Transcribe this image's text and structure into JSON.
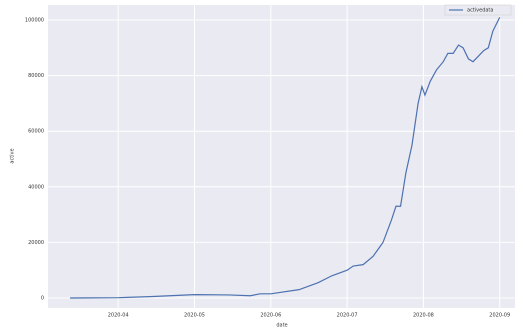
{
  "chart_data": {
    "type": "line",
    "x_label": "date",
    "y_label": "active",
    "x": [
      3.37,
      4.0,
      4.42,
      5.0,
      5.45,
      5.73,
      5.86,
      6.0,
      6.37,
      6.62,
      6.8,
      7.0,
      7.08,
      7.21,
      7.34,
      7.47,
      7.58,
      7.64,
      7.7,
      7.77,
      7.85,
      7.93,
      7.98,
      8.02,
      8.09,
      8.17,
      8.26,
      8.32,
      8.39,
      8.46,
      8.52,
      8.59,
      8.65,
      8.72,
      8.79,
      8.85,
      8.91,
      9.0
    ],
    "series": [
      {
        "name": "activedata",
        "color": "#4c72b0",
        "values": [
          0,
          100,
          500,
          1200,
          1100,
          800,
          1500,
          1500,
          3000,
          5500,
          8000,
          10000,
          11500,
          12000,
          15000,
          20000,
          28000,
          33000,
          33000,
          45000,
          55000,
          70000,
          76000,
          73000,
          78000,
          82000,
          85000,
          88000,
          88000,
          91000,
          90000,
          86000,
          85000,
          87000,
          89000,
          90000,
          96000,
          101000
        ]
      }
    ],
    "xlim": [
      3.08,
      9.2
    ],
    "xticks": [
      {
        "value": 4,
        "label": "2020-04"
      },
      {
        "value": 5,
        "label": "2020-05"
      },
      {
        "value": 6,
        "label": "2020-06"
      },
      {
        "value": 7,
        "label": "2020-07"
      },
      {
        "value": 8,
        "label": "2020-08"
      },
      {
        "value": 9,
        "label": "2020-09"
      }
    ],
    "ylim": [
      -3600,
      105400
    ],
    "yticks": [
      0,
      20000,
      40000,
      60000,
      80000,
      100000
    ],
    "grid": true,
    "legend": "upper right",
    "background": "#eaeaf2"
  }
}
